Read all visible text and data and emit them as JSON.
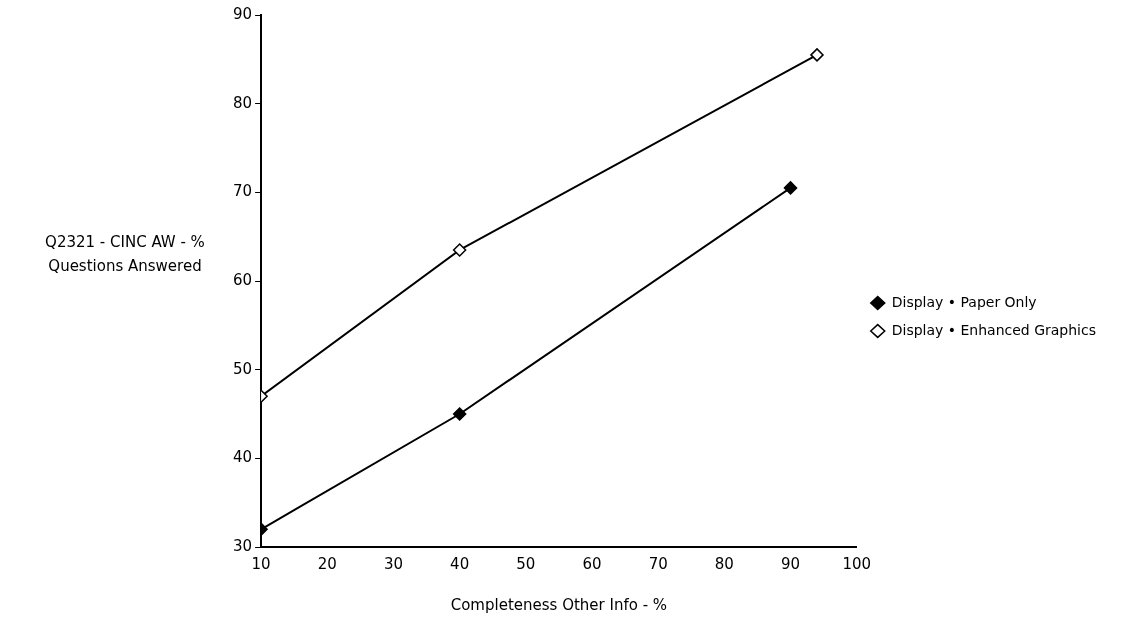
{
  "chart_data": {
    "type": "line",
    "xlabel": "Completeness Other Info - %",
    "ylabel": "Q2321 - CINC AW - % Questions Answered",
    "xlim": [
      10,
      100
    ],
    "xticks": [
      10,
      20,
      30,
      40,
      50,
      60,
      70,
      80,
      90,
      100
    ],
    "ylim": [
      30,
      90
    ],
    "yticks": [
      30,
      40,
      50,
      60,
      70,
      80,
      90
    ],
    "series": [
      {
        "name": "Display • Paper Only",
        "color": "#000000",
        "x": [
          10,
          40,
          90
        ],
        "values": [
          32,
          45,
          70.5
        ]
      },
      {
        "name": "Display • Enhanced Graphics",
        "color": "#000000",
        "x": [
          10,
          40,
          94
        ],
        "values": [
          47,
          63.5,
          85.5
        ]
      }
    ],
    "grid": false,
    "legend": "right",
    "marker": "diamond",
    "line_style": "solid"
  }
}
